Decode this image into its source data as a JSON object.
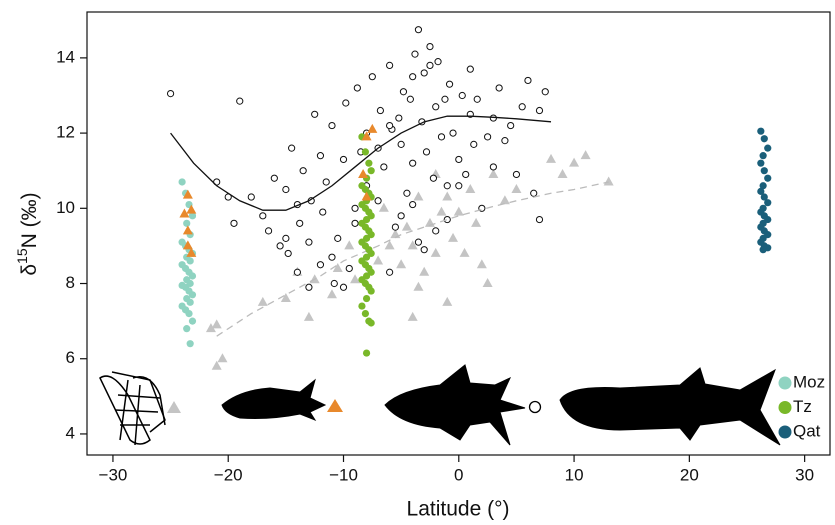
{
  "chart_data": {
    "type": "scatter",
    "x_label": "Latitude (°)",
    "y_label": {
      "prefix": "δ",
      "sup": "15",
      "suffix": "N (‰)"
    },
    "xlim": [
      -32.25,
      32.2
    ],
    "ylim": [
      3.44,
      15.22
    ],
    "xticks": [
      {
        "value": -30,
        "label": "−30"
      },
      {
        "value": -20,
        "label": "−20"
      },
      {
        "value": -10,
        "label": "−10"
      },
      0,
      10,
      20,
      30
    ],
    "yticks": [
      4,
      6,
      8,
      10,
      12,
      14
    ],
    "legend_position": "lower right",
    "series": [
      {
        "color": "#c4c4c4",
        "marker": "triangle",
        "filled": true,
        "x": [
          -21.5,
          -21,
          -21,
          -20.5,
          -17,
          -15,
          -14,
          -13,
          -12.5,
          -11,
          -10.5,
          -9.5,
          -9,
          -7,
          -6,
          -5.5,
          -5,
          -4.5,
          -4,
          -3.5,
          -3,
          -2.5,
          -2,
          -1.5,
          -1,
          -0.5,
          0,
          0.5,
          1,
          1.5,
          2,
          2.5,
          -4,
          -1,
          3,
          4,
          5,
          8,
          9,
          10,
          11,
          13,
          -6.5,
          -2,
          -3.5
        ],
        "values": [
          6.8,
          6.9,
          5.8,
          6.0,
          7.5,
          7.6,
          8.3,
          7.1,
          8.1,
          7.7,
          8.4,
          9.0,
          8.1,
          8.6,
          9.0,
          9.3,
          8.5,
          9.5,
          9.0,
          7.9,
          8.3,
          9.6,
          8.8,
          9.9,
          10.3,
          9.2,
          9.9,
          8.8,
          10.5,
          9.6,
          8.5,
          8.0,
          7.1,
          7.5,
          10.9,
          10.2,
          10.5,
          11.3,
          10.9,
          11.2,
          11.4,
          10.7,
          10.0,
          10.9,
          10.3
        ]
      },
      {
        "color": "#111111",
        "marker": "circle",
        "filled": false,
        "x": [
          -25,
          -19,
          -18,
          -17,
          -16.5,
          -16,
          -15.5,
          -15,
          -14.8,
          -14.5,
          -14,
          -13.8,
          -13.5,
          -13,
          -12.8,
          -12.5,
          -12,
          -11.8,
          -11.5,
          -11,
          -10.8,
          -10.5,
          -10,
          -9.8,
          -9.5,
          -9,
          -8.8,
          -8.5,
          -8,
          -7.5,
          -7,
          -6.8,
          -6.5,
          -6,
          -5.8,
          -5.5,
          -5.2,
          -5,
          -4.8,
          -4.5,
          -4.2,
          -4,
          -3.8,
          -3.5,
          -3.2,
          -3,
          -2.8,
          -2.5,
          -2.2,
          -2,
          -1.8,
          -1.5,
          -1.2,
          -1,
          -0.8,
          -0.5,
          0,
          0.3,
          0.6,
          1,
          1.3,
          1.6,
          2,
          2.5,
          3,
          3.5,
          4,
          4.5,
          5,
          5.5,
          6,
          6.5,
          7,
          7.5,
          -6,
          -5,
          -4,
          -3,
          -2,
          -1,
          0,
          -13,
          -12,
          -11,
          -10,
          -9,
          -3.5,
          -2.5,
          7,
          -20,
          -19.5,
          -21,
          -8,
          -7,
          -4,
          1,
          3,
          -15,
          -14,
          -6
        ],
        "values": [
          13.05,
          12.85,
          10.3,
          9.8,
          9.4,
          10.8,
          9.0,
          10.5,
          8.8,
          11.6,
          8.3,
          9.6,
          11.0,
          7.9,
          10.2,
          12.5,
          8.5,
          9.9,
          10.7,
          12.2,
          8.0,
          9.2,
          11.3,
          12.8,
          8.4,
          10.0,
          13.2,
          11.5,
          12.0,
          13.5,
          10.2,
          12.6,
          11.1,
          13.8,
          12.1,
          9.5,
          12.4,
          11.7,
          13.1,
          10.4,
          12.9,
          11.2,
          14.1,
          9.1,
          12.3,
          13.6,
          11.5,
          14.3,
          10.8,
          12.7,
          13.9,
          11.9,
          12.9,
          10.6,
          13.3,
          12.0,
          11.3,
          13.0,
          10.9,
          12.5,
          11.7,
          12.9,
          10.0,
          11.9,
          12.4,
          13.2,
          11.8,
          12.2,
          10.9,
          12.7,
          13.4,
          10.4,
          12.6,
          13.1,
          8.3,
          9.8,
          10.1,
          8.9,
          9.4,
          9.7,
          10.6,
          9.1,
          11.4,
          8.7,
          7.9,
          9.6,
          14.75,
          13.8,
          9.7,
          10.3,
          9.6,
          10.7,
          10.6,
          11.6,
          13.5,
          13.7,
          11.1,
          9.2,
          10.1,
          12.2
        ]
      },
      {
        "name": "Moz",
        "color": "#8fd3c1",
        "marker": "circle",
        "filled": true,
        "x": [
          -24,
          -23.7,
          -23.4,
          -23.1,
          -23.6,
          -23.3,
          -24,
          -23.7,
          -23.4,
          -23.1,
          -23.6,
          -23.3,
          -24,
          -23.7,
          -23.4,
          -23.1,
          -23.6,
          -23.3,
          -24,
          -23.7,
          -23.4,
          -23.1,
          -23.6,
          -23.3,
          -24,
          -23.7,
          -23.4,
          -23.1,
          -23.6,
          -23.3
        ],
        "values": [
          10.7,
          10.4,
          10.1,
          9.8,
          9.6,
          9.3,
          9.1,
          9.0,
          8.9,
          8.8,
          8.7,
          8.6,
          8.5,
          8.4,
          8.3,
          8.2,
          8.1,
          8.0,
          7.95,
          7.9,
          7.8,
          7.7,
          7.6,
          7.5,
          7.4,
          7.3,
          7.2,
          7.0,
          6.8,
          6.4
        ]
      },
      {
        "name": "Tz",
        "color": "#79b829",
        "marker": "circle",
        "filled": true,
        "x": [
          -8.4,
          -8.1,
          -7.8,
          -7.6,
          -8.0,
          -8.4,
          -8.1,
          -7.8,
          -7.6,
          -8.0,
          -8.4,
          -8.1,
          -7.8,
          -7.6,
          -8.0,
          -8.4,
          -8.1,
          -7.8,
          -7.6,
          -8.0,
          -8.4,
          -8.1,
          -7.8,
          -7.6,
          -8.0,
          -8.4,
          -8.1,
          -7.8,
          -7.6,
          -8.0,
          -8.4,
          -8.1,
          -7.8,
          -7.6,
          -8.0,
          -8.4,
          -8.1,
          -7.8,
          -7.6,
          -8.0
        ],
        "values": [
          11.9,
          11.5,
          11.2,
          11.0,
          10.8,
          10.6,
          10.5,
          10.4,
          10.3,
          10.2,
          10.1,
          10.0,
          9.9,
          9.8,
          9.7,
          9.6,
          9.5,
          9.4,
          9.3,
          9.2,
          9.1,
          9.0,
          8.9,
          8.8,
          8.7,
          8.6,
          8.5,
          8.4,
          8.3,
          8.2,
          8.1,
          8.0,
          7.9,
          7.8,
          7.6,
          7.4,
          7.2,
          7.0,
          6.95,
          6.15
        ]
      },
      {
        "name": "Qat",
        "color": "#1a5f7a",
        "marker": "circle",
        "filled": true,
        "x": [
          26.2,
          26.5,
          26.8,
          26.4,
          26.2,
          26.5,
          26.8,
          26.4,
          26.2,
          26.5,
          26.8,
          26.4,
          26.2,
          26.5,
          26.8,
          26.4,
          26.2,
          26.5,
          26.8,
          26.4,
          26.2,
          26.5,
          26.8,
          26.4
        ],
        "values": [
          12.05,
          11.85,
          11.6,
          11.4,
          11.2,
          11.0,
          10.8,
          10.6,
          10.45,
          10.3,
          10.15,
          10.0,
          9.9,
          9.8,
          9.7,
          9.6,
          9.5,
          9.4,
          9.3,
          9.2,
          9.1,
          9.0,
          8.95,
          8.9
        ]
      },
      {
        "color": "#e8892c",
        "marker": "triangle",
        "filled": true,
        "x": [
          -23.5,
          -23.8,
          -23.2,
          -23.5,
          -23.5,
          -23.2,
          -8,
          -8,
          -7.5,
          -8.3
        ],
        "values": [
          10.35,
          9.85,
          9.95,
          9.4,
          9.0,
          8.8,
          10.3,
          11.9,
          12.1,
          10.9
        ]
      }
    ],
    "fit_lines": [
      {
        "color": "#111111",
        "dashed": false,
        "x": [
          -25,
          -23,
          -21,
          -19,
          -17,
          -15,
          -13,
          -11,
          -9,
          -7,
          -5,
          -3,
          -1,
          1,
          3,
          5,
          8
        ],
        "values": [
          12.0,
          11.2,
          10.6,
          10.2,
          9.95,
          9.95,
          10.2,
          10.6,
          11.1,
          11.6,
          12.0,
          12.3,
          12.45,
          12.45,
          12.42,
          12.38,
          12.3
        ]
      },
      {
        "color": "#bbbbbb",
        "dashed": true,
        "x": [
          -21,
          -18,
          -15,
          -12,
          -10,
          -7,
          -5,
          -2,
          0,
          3,
          5,
          8,
          10,
          13
        ],
        "values": [
          6.6,
          7.2,
          7.7,
          8.2,
          8.6,
          9.0,
          9.3,
          9.6,
          9.8,
          10.05,
          10.2,
          10.4,
          10.5,
          10.7
        ]
      }
    ]
  }
}
